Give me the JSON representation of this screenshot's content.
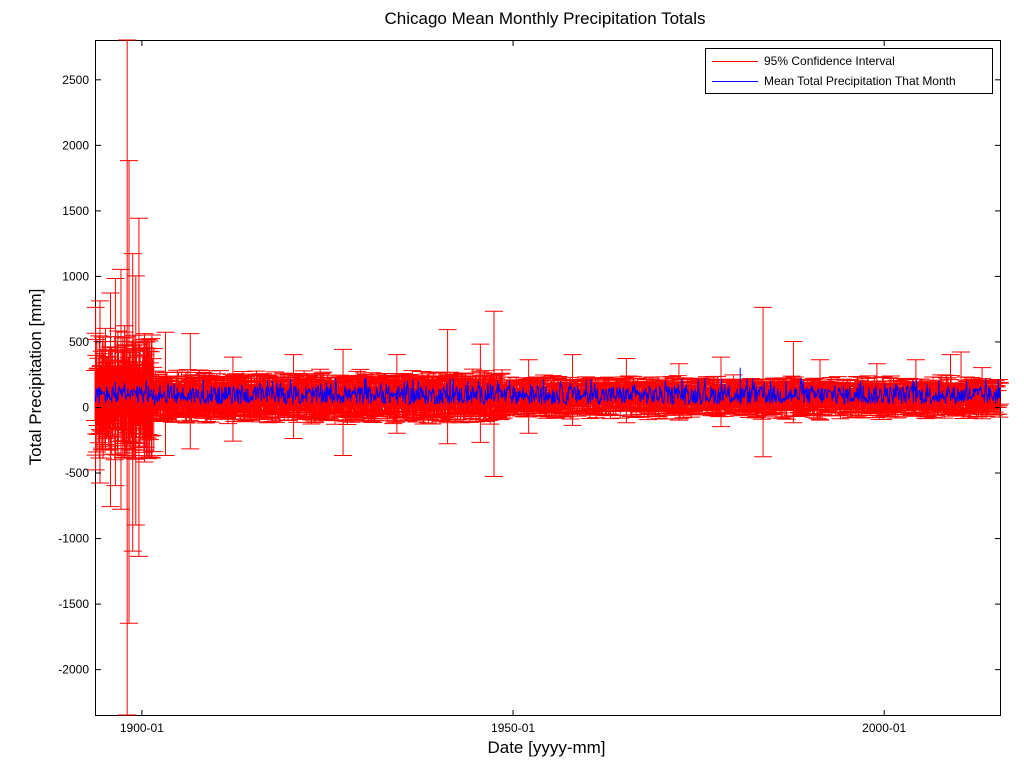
{
  "chart_data": {
    "type": "line",
    "title": "Chicago Mean Monthly Precipitation Totals",
    "xlabel": "Date [yyyy-mm]",
    "ylabel": "Total Precipitation [mm]",
    "x_range": [
      "1893-10",
      "2015-09"
    ],
    "ylim": [
      -2350,
      2800
    ],
    "x_ticks": [
      {
        "date": "1900-01",
        "label": "1900-01"
      },
      {
        "date": "1950-01",
        "label": "1950-01"
      },
      {
        "date": "2000-01",
        "label": "2000-01"
      }
    ],
    "y_ticks": [
      -2000,
      -1500,
      -1000,
      -500,
      0,
      500,
      1000,
      1500,
      2000,
      2500
    ],
    "grid": false,
    "legend_position": "top-right",
    "series": [
      {
        "name": "95% Confidence Interval",
        "kind": "errorbar",
        "color": "#ff0000",
        "points": [
          {
            "x": "1893-11",
            "low": -480,
            "high": 760
          },
          {
            "x": "1894-06",
            "low": -580,
            "high": 810
          },
          {
            "x": "1895-03",
            "low": -300,
            "high": 600
          },
          {
            "x": "1895-11",
            "low": -760,
            "high": 870
          },
          {
            "x": "1896-07",
            "low": -600,
            "high": 980
          },
          {
            "x": "1897-04",
            "low": -780,
            "high": 1050
          },
          {
            "x": "1897-10",
            "low": -350,
            "high": 620
          },
          {
            "x": "1898-02",
            "low": -2350,
            "high": 2800
          },
          {
            "x": "1898-05",
            "low": -1650,
            "high": 1880
          },
          {
            "x": "1898-11",
            "low": -1100,
            "high": 1170
          },
          {
            "x": "1899-04",
            "low": -900,
            "high": 1000
          },
          {
            "x": "1899-09",
            "low": -1140,
            "high": 1440
          },
          {
            "x": "1900-06",
            "low": -420,
            "high": 560
          },
          {
            "x": "1903-04",
            "low": -370,
            "high": 570
          },
          {
            "x": "1906-08",
            "low": -320,
            "high": 560
          },
          {
            "x": "1912-05",
            "low": -260,
            "high": 380
          },
          {
            "x": "1920-07",
            "low": -240,
            "high": 400
          },
          {
            "x": "1927-03",
            "low": -370,
            "high": 440
          },
          {
            "x": "1934-06",
            "low": -200,
            "high": 400
          },
          {
            "x": "1941-04",
            "low": -280,
            "high": 590
          },
          {
            "x": "1945-09",
            "low": -270,
            "high": 480
          },
          {
            "x": "1947-07",
            "low": -530,
            "high": 730
          },
          {
            "x": "1952-03",
            "low": -200,
            "high": 360
          },
          {
            "x": "1958-02",
            "low": -140,
            "high": 400
          },
          {
            "x": "1965-05",
            "low": -120,
            "high": 370
          },
          {
            "x": "1972-06",
            "low": -100,
            "high": 330
          },
          {
            "x": "1978-02",
            "low": -150,
            "high": 380
          },
          {
            "x": "1983-10",
            "low": -380,
            "high": 760
          },
          {
            "x": "1987-11",
            "low": -120,
            "high": 500
          },
          {
            "x": "1991-06",
            "low": -100,
            "high": 360
          },
          {
            "x": "1999-02",
            "low": -80,
            "high": 330
          },
          {
            "x": "2004-05",
            "low": -60,
            "high": 360
          },
          {
            "x": "2009-01",
            "low": -70,
            "high": 400
          },
          {
            "x": "2010-06",
            "low": -50,
            "high": 420
          },
          {
            "x": "2013-04",
            "low": -90,
            "high": 300
          }
        ]
      },
      {
        "name": "Mean Total Precipitation That Month",
        "kind": "line",
        "color": "#0000ff",
        "typical_range": [
          20,
          160
        ],
        "peak": {
          "x": "1980-09",
          "y": 300
        }
      }
    ]
  }
}
